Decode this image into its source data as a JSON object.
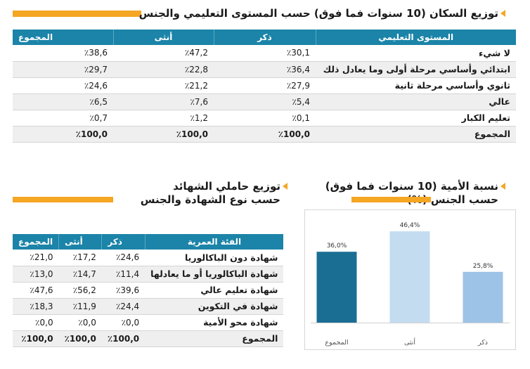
{
  "population_section": {
    "title": "توزيع السكان (10 سنوات فما فوق) حسب المستوى التعليمي والجنس",
    "headers": [
      "المستوى التعليمي",
      "ذكر",
      "أنثى",
      "المجموع"
    ],
    "rows": [
      {
        "label": "لا شيء",
        "male": "٪30,1",
        "female": "٪47,2",
        "total": "٪38,6"
      },
      {
        "label": "ابتدائي وأساسي مرحلة أولى وما يعادل ذلك",
        "male": "٪36,4",
        "female": "٪22,8",
        "total": "٪29,7"
      },
      {
        "label": "ثانوي وأساسي مرحلة ثانية",
        "male": "٪27,9",
        "female": "٪21,2",
        "total": "٪24,6"
      },
      {
        "label": "عالي",
        "male": "٪5,4",
        "female": "٪7,6",
        "total": "٪6,5"
      },
      {
        "label": "تعليم الكبار",
        "male": "٪0,1",
        "female": "٪1,2",
        "total": "٪0,7"
      },
      {
        "label": "المجموع",
        "male": "٪100,0",
        "female": "٪100,0",
        "total": "٪100,0"
      }
    ]
  },
  "illiteracy_section": {
    "title_line1": "نسبة الأمية (10 سنوات فما فوق)",
    "title_line2": "حسب الجنس (%)"
  },
  "chart_data": {
    "type": "bar",
    "categories": [
      "المجموع",
      "أنثى",
      "ذكر"
    ],
    "values": [
      36.0,
      46.4,
      25.8
    ],
    "value_labels": [
      "36,0%",
      "46,4%",
      "25,8%"
    ],
    "colors": [
      "#1a6e94",
      "#c4dcf0",
      "#9dc3e6"
    ],
    "ylim": [
      0,
      50
    ],
    "grid": false,
    "legend": "none"
  },
  "certificates_section": {
    "title_line1": "توزيع حاملي الشهائد",
    "title_line2": "حسب نوع الشهادة والجنس",
    "headers": [
      "الفئة العمرية",
      "ذكر",
      "أنثى",
      "المجموع"
    ],
    "rows": [
      {
        "label": "شهادة دون الباكالوريا",
        "male": "٪24,6",
        "female": "٪17,2",
        "total": "٪21,0"
      },
      {
        "label": "شهادة الباكالوريا أو ما يعادلها",
        "male": "٪11,4",
        "female": "٪14,7",
        "total": "٪13,0"
      },
      {
        "label": "شهادة تعليم عالي",
        "male": "٪39,6",
        "female": "٪56,2",
        "total": "٪47,6"
      },
      {
        "label": "شهادة في التكوين",
        "male": "٪24,4",
        "female": "٪11,9",
        "total": "٪18,3"
      },
      {
        "label": "شهادة محو الأمية",
        "male": "٪0,0",
        "female": "٪0,0",
        "total": "٪0,0"
      },
      {
        "label": "المجموع",
        "male": "٪100,0",
        "female": "٪100,0",
        "total": "٪100,0"
      }
    ]
  },
  "colors": {
    "accent": "#f5a623",
    "header": "#1b84a8"
  }
}
